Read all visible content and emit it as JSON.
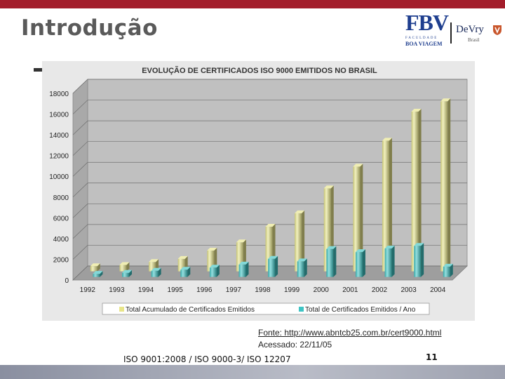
{
  "slide": {
    "title": "Introdução",
    "source_line1": "Fonte: http://www.abntcb25.com.br/cert9000.html",
    "source_line2": "Acessado: 22/11/05",
    "footer": "ISO 9001:2008 / ISO 9000-3/ ISO 12207",
    "page_number": "11"
  },
  "logos": {
    "fbv": "FBV",
    "fbv_sub1": "FACULDADE",
    "fbv_sub2": "BOA VIAGEM",
    "devry": "DeVry",
    "devry_sub": "Brasil"
  },
  "colors": {
    "accent_bar": "#a31d2b",
    "series_total": "#e8e58a",
    "series_year": "#3fc4c4",
    "plot_background": "#c0c0c0",
    "chart_frame": "#e8e8e8"
  },
  "chart_data": {
    "type": "bar",
    "title": "EVOLUÇÃO  DE  CERTIFICADOS  ISO  9000  EMITIDOS  NO  BRASIL",
    "xlabel": "",
    "ylabel": "",
    "ylim": [
      0,
      18000
    ],
    "yticks": [
      0,
      2000,
      4000,
      6000,
      8000,
      10000,
      12000,
      14000,
      16000,
      18000
    ],
    "grid": true,
    "legend_position": "bottom",
    "categories": [
      "1992",
      "1993",
      "1994",
      "1995",
      "1996",
      "1997",
      "1998",
      "1999",
      "2000",
      "2001",
      "2002",
      "2003",
      "2004"
    ],
    "series": [
      {
        "name": "Total Acumulado de Certificados Emitidos",
        "color": "#e8e58a",
        "values": [
          500,
          620,
          900,
          1200,
          2000,
          2800,
          4300,
          5600,
          8000,
          10100,
          12600,
          15400,
          16400
        ]
      },
      {
        "name": "Total de Certificados Emitidos / Ano",
        "color": "#3fc4c4",
        "values": [
          300,
          400,
          600,
          700,
          900,
          1200,
          1750,
          1500,
          2700,
          2400,
          2750,
          3000,
          1000
        ]
      }
    ]
  }
}
